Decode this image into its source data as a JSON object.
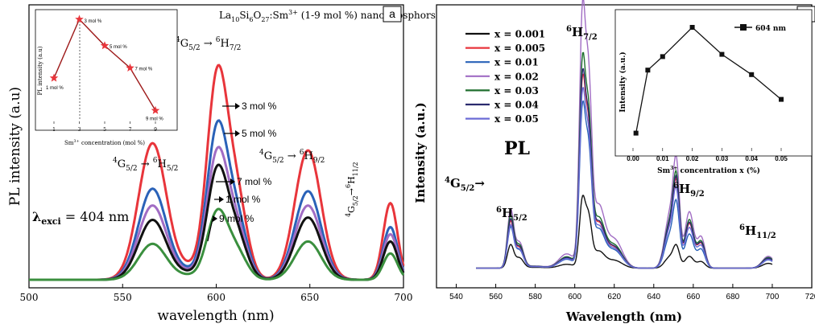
{
  "chart_data": [
    {
      "panel": "a",
      "type": "line",
      "title": "La10Si6O27:Sm3+ (1-9 mol %) nanophosphors",
      "title_parts": {
        "base": "La",
        "s1": "10",
        "m1": "Si",
        "s2": "6",
        "m2": "O",
        "s3": "27",
        "m3": ":Sm",
        "sup": "3+",
        "tail": " (1-9 mol %) nanophosphors"
      },
      "xlabel": "wavelength (nm)",
      "ylabel": "PL intensity (a.u)",
      "xlim": [
        500,
        700
      ],
      "ylim": [
        0,
        1.0
      ],
      "xticks": [
        "500",
        "550",
        "600",
        "650",
        "700"
      ],
      "excitation": {
        "symbol": "λ",
        "sub": "exci",
        "text": " = 404 nm"
      },
      "transition_labels": {
        "t1": {
          "a": "4",
          "b": "G",
          "c": "5/2",
          "d": " → ",
          "e": "6",
          "f": "H",
          "g": "5/2"
        },
        "t2": {
          "a": "4",
          "b": "G",
          "c": "5/2",
          "d": " → ",
          "e": "6",
          "f": "H",
          "g": "7/2"
        },
        "t3": {
          "a": "4",
          "b": "G",
          "c": "5/2",
          "d": " → ",
          "e": "6",
          "f": "H",
          "g": "9/2"
        },
        "t4": {
          "a": "4",
          "b": "G",
          "c": "5/2",
          "d": "→",
          "e": "6",
          "f": "H",
          "g": "11/2"
        }
      },
      "series": [
        {
          "name": "3 mol %",
          "color": "#e8353b",
          "peaks": {
            "566": 0.57,
            "600": 0.97,
            "649": 0.54,
            "692": 0.32
          }
        },
        {
          "name": "5 mol %",
          "color": "#2a62b8",
          "peaks": {
            "566": 0.38,
            "600": 0.72,
            "649": 0.37,
            "692": 0.22
          }
        },
        {
          "name": "7 mol %",
          "color": "#a16dc4",
          "peaks": {
            "566": 0.31,
            "600": 0.6,
            "649": 0.31,
            "692": 0.19
          }
        },
        {
          "name": "1 mol %",
          "color": "#111111",
          "peaks": {
            "566": 0.25,
            "600": 0.52,
            "649": 0.26,
            "692": 0.16
          }
        },
        {
          "name": "9 mol %",
          "color": "#3a8f3e",
          "peaks": {
            "566": 0.15,
            "600": 0.32,
            "649": 0.16,
            "692": 0.11
          }
        }
      ],
      "inset": {
        "type": "line",
        "xlabel": "Sm3+ concentration (mol %)",
        "xlabel_parts": {
          "pre": "Sm",
          "sup": "3+",
          "post": " concentration (mol %)"
        },
        "ylabel": "PL intensity (a.u)",
        "xticks": [
          "1",
          "3",
          "5",
          "7",
          "9"
        ],
        "x": [
          1,
          3,
          5,
          7,
          9
        ],
        "y": [
          0.42,
          1.0,
          0.74,
          0.52,
          0.1
        ],
        "point_labels": [
          "1 mol %",
          "3 mol %",
          "5 mol %",
          "7 mol %",
          "9 mol %"
        ],
        "color": "#9e1b1b",
        "marker_color": "#e8353b"
      }
    },
    {
      "panel": "b",
      "type": "line",
      "xlabel": "Wavelength (nm)",
      "ylabel": "Intensity (a.u.)",
      "xlim": [
        530,
        720
      ],
      "xticks": [
        "540",
        "560",
        "580",
        "600",
        "620",
        "640",
        "660",
        "680",
        "700",
        "720"
      ],
      "pl_label": "PL",
      "legend_position": "top-left",
      "transition_labels": {
        "g": {
          "a": "4",
          "b": "G",
          "c": "5/2",
          "d": "→"
        },
        "h5": {
          "a": "6",
          "b": "H",
          "c": "5/2"
        },
        "h7": {
          "a": "6",
          "b": "H",
          "c": "7/2"
        },
        "h9": {
          "a": "6",
          "b": "H",
          "c": "9/2"
        },
        "h11": {
          "a": "6",
          "b": "H",
          "c": "11/2"
        }
      },
      "series": [
        {
          "name": "x = 0.001",
          "color": "#111111",
          "peaks": {
            "568": 0.12,
            "604": 0.27,
            "652": 0.09
          }
        },
        {
          "name": "x = 0.005",
          "color": "#e8353b",
          "peaks": {
            "568": 0.24,
            "604": 0.72,
            "652": 0.34
          }
        },
        {
          "name": "x = 0.01",
          "color": "#2a62b8",
          "peaks": {
            "568": 0.21,
            "604": 0.62,
            "652": 0.26
          }
        },
        {
          "name": "x = 0.02",
          "color": "#a16dc4",
          "peaks": {
            "568": 0.3,
            "604": 1.0,
            "652": 0.43
          }
        },
        {
          "name": "x = 0.03",
          "color": "#1f6e2e",
          "peaks": {
            "568": 0.27,
            "604": 0.8,
            "652": 0.37
          }
        },
        {
          "name": "x = 0.04",
          "color": "#2a2a6e",
          "peaks": {
            "568": 0.25,
            "604": 0.74,
            "652": 0.35
          }
        },
        {
          "name": "x = 0.05",
          "color": "#6b6bd6",
          "peaks": {
            "568": 0.22,
            "604": 0.67,
            "652": 0.31
          }
        }
      ],
      "inset": {
        "type": "line",
        "xlabel": "Sm3+ concentration x (%)",
        "xlabel_parts": {
          "pre": "Sm",
          "sup": "3+",
          "post": " concentration x (%)"
        },
        "ylabel": "Intensity (a.u.)",
        "legend": "604 nm",
        "xticks": [
          "0.00",
          "0.01",
          "0.02",
          "0.03",
          "0.04",
          "0.05"
        ],
        "x": [
          0.001,
          0.005,
          0.01,
          0.02,
          0.03,
          0.04,
          0.05
        ],
        "y": [
          0.06,
          0.62,
          0.74,
          1.0,
          0.76,
          0.58,
          0.36
        ],
        "color": "#111111"
      }
    }
  ],
  "panel_labels": {
    "a": "a",
    "b": "b"
  }
}
